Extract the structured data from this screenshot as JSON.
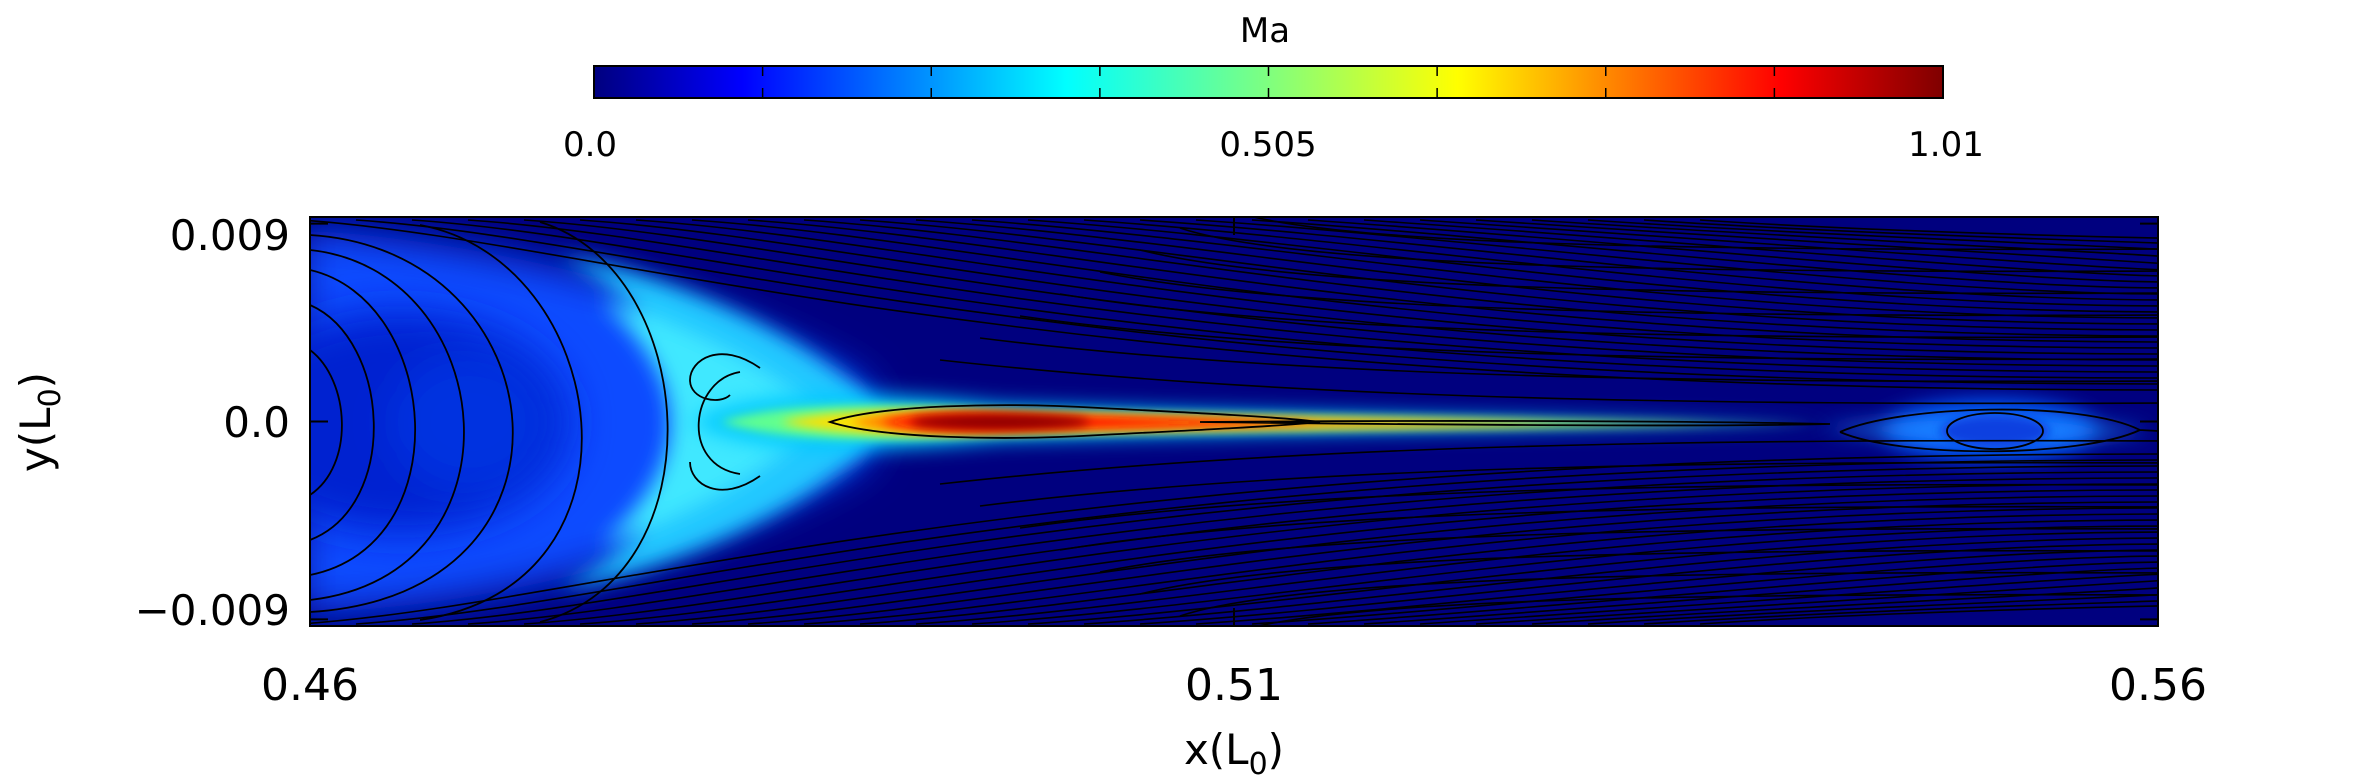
{
  "chart_data": {
    "type": "heatmap",
    "title": "",
    "xlabel": "x(L",
    "xlabel_sub": "0",
    "xlabel_close": ")",
    "ylabel": "y(L",
    "ylabel_sub": "0",
    "ylabel_close": ")",
    "xlim": [
      0.46,
      0.56
    ],
    "ylim": [
      -0.0093,
      0.0093
    ],
    "x_ticks": [
      0.46,
      0.51,
      0.56
    ],
    "x_tick_labels": [
      "0.46",
      "0.51",
      "0.56"
    ],
    "y_ticks": [
      0.009,
      0.0,
      -0.009
    ],
    "y_tick_labels": [
      "0.009",
      "0.0",
      "−0.009"
    ],
    "colorbar": {
      "title": "Ma",
      "range": [
        0.0,
        1.01
      ],
      "tick_labels": [
        "0.0",
        "0.505",
        "1.01"
      ],
      "tick_values": [
        0.0,
        0.505,
        1.01
      ],
      "colormap": "jet"
    },
    "features": [
      {
        "kind": "jet-core",
        "x_range": [
          0.486,
          0.514
        ],
        "peak_mach": 1.01
      },
      {
        "kind": "current-sheet",
        "x_range": [
          0.514,
          0.544
        ],
        "mach": 0.6
      },
      {
        "kind": "plasmoid",
        "x_center": 0.5528,
        "y_center": 0.0
      }
    ],
    "streamlines": true,
    "grid": false,
    "legend": "none"
  },
  "colors": {
    "background": "#00007f",
    "streamline": "#000000",
    "colormap_stops": [
      "#00007f",
      "#0000ff",
      "#007fff",
      "#00ffff",
      "#7fff7f",
      "#ffff00",
      "#ff7f00",
      "#ff0000",
      "#7f0000"
    ]
  }
}
